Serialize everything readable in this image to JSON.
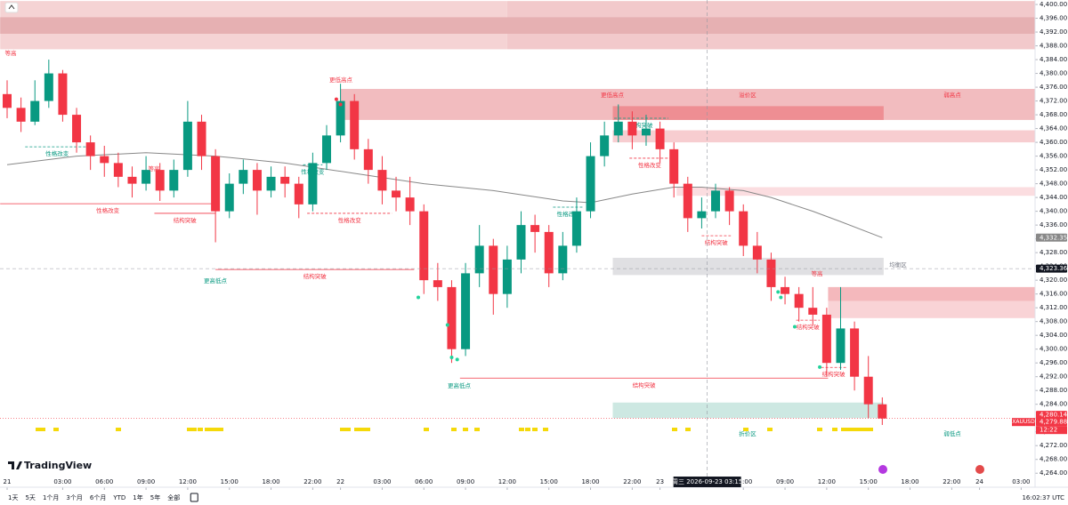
{
  "chart_data": {
    "type": "candlestick",
    "symbol": "XAUUSD",
    "up_color": "#089981",
    "down_color": "#f23645",
    "xlim": [
      -0.5,
      74
    ],
    "ylim": [
      4262,
      4401.3
    ],
    "xticks": [
      {
        "value": 0,
        "label": "21"
      },
      {
        "value": 4,
        "label": "03:00"
      },
      {
        "value": 7,
        "label": "06:00"
      },
      {
        "value": 10,
        "label": "09:00"
      },
      {
        "value": 13,
        "label": "12:00"
      },
      {
        "value": 16,
        "label": "15:00"
      },
      {
        "value": 19,
        "label": "18:00"
      },
      {
        "value": 22,
        "label": "22:00"
      },
      {
        "value": 24,
        "label": "22"
      },
      {
        "value": 27,
        "label": "03:00"
      },
      {
        "value": 30,
        "label": "06:00"
      },
      {
        "value": 33,
        "label": "09:00"
      },
      {
        "value": 36,
        "label": "12:00"
      },
      {
        "value": 39,
        "label": "15:00"
      },
      {
        "value": 42,
        "label": "18:00"
      },
      {
        "value": 45,
        "label": "22:00"
      },
      {
        "value": 47,
        "label": "23"
      },
      {
        "value": 53,
        "label": "06:00"
      },
      {
        "value": 56,
        "label": "09:00"
      },
      {
        "value": 59,
        "label": "12:00"
      },
      {
        "value": 62,
        "label": "15:00"
      },
      {
        "value": 65,
        "label": "18:00"
      },
      {
        "value": 68,
        "label": "22:00"
      },
      {
        "value": 70,
        "label": "24"
      },
      {
        "value": 73,
        "label": "03:00"
      }
    ],
    "yticks": [
      {
        "value": 4400,
        "label": "4,400.00"
      },
      {
        "value": 4396,
        "label": "4,396.00"
      },
      {
        "value": 4392,
        "label": "4,392.00"
      },
      {
        "value": 4388,
        "label": "4,388.00"
      },
      {
        "value": 4384,
        "label": "4,384.00"
      },
      {
        "value": 4380,
        "label": "4,380.00"
      },
      {
        "value": 4376,
        "label": "4,376.00"
      },
      {
        "value": 4372,
        "label": "4,372.00"
      },
      {
        "value": 4368,
        "label": "4,368.00"
      },
      {
        "value": 4364,
        "label": "4,364.00"
      },
      {
        "value": 4360,
        "label": "4,360.00"
      },
      {
        "value": 4356,
        "label": "4,356.00"
      },
      {
        "value": 4352,
        "label": "4,352.00"
      },
      {
        "value": 4348,
        "label": "4,348.00"
      },
      {
        "value": 4344,
        "label": "4,344.00"
      },
      {
        "value": 4340,
        "label": "4,340.00"
      },
      {
        "value": 4336,
        "label": "4,336.00"
      },
      {
        "value": 4332,
        "label": "4,332.00"
      },
      {
        "value": 4328,
        "label": "4,328.00"
      },
      {
        "value": 4324,
        "label": "4,324.00"
      },
      {
        "value": 4320,
        "label": "4,320.00"
      },
      {
        "value": 4316,
        "label": "4,316.00"
      },
      {
        "value": 4312,
        "label": "4,312.00"
      },
      {
        "value": 4308,
        "label": "4,308.00"
      },
      {
        "value": 4304,
        "label": "4,304.00"
      },
      {
        "value": 4300,
        "label": "4,300.00"
      },
      {
        "value": 4296,
        "label": "4,296.00"
      },
      {
        "value": 4292,
        "label": "4,292.00"
      },
      {
        "value": 4288,
        "label": "4,288.00"
      },
      {
        "value": 4284,
        "label": "4,284.00"
      },
      {
        "value": 4280,
        "label": "4,280.00"
      },
      {
        "value": 4276,
        "label": "4,276.00"
      },
      {
        "value": 4272,
        "label": "4,272.00"
      },
      {
        "value": 4268,
        "label": "4,268.00"
      },
      {
        "value": 4264,
        "label": "4,264.00"
      }
    ],
    "ohlc": [
      [
        4374,
        4378,
        4367,
        4370
      ],
      [
        4370,
        4373,
        4363,
        4366
      ],
      [
        4366,
        4378,
        4365,
        4372
      ],
      [
        4372,
        4384,
        4370,
        4380
      ],
      [
        4380,
        4381,
        4366,
        4368
      ],
      [
        4368,
        4370,
        4357,
        4360
      ],
      [
        4360,
        4362,
        4352,
        4356
      ],
      [
        4356,
        4359,
        4350,
        4354
      ],
      [
        4354,
        4357,
        4347,
        4350
      ],
      [
        4350,
        4353,
        4344,
        4348
      ],
      [
        4348,
        4356,
        4346,
        4352
      ],
      [
        4352,
        4354,
        4343,
        4346
      ],
      [
        4346,
        4355,
        4344,
        4352
      ],
      [
        4352,
        4372,
        4350,
        4366
      ],
      [
        4366,
        4368,
        4352,
        4356
      ],
      [
        4356,
        4358,
        4331,
        4340
      ],
      [
        4340,
        4351,
        4338,
        4348
      ],
      [
        4348,
        4355,
        4345,
        4352
      ],
      [
        4352,
        4354,
        4339,
        4346
      ],
      [
        4346,
        4353,
        4344,
        4350
      ],
      [
        4350,
        4353,
        4344,
        4348
      ],
      [
        4348,
        4350,
        4338,
        4342
      ],
      [
        4342,
        4357,
        4340,
        4354
      ],
      [
        4354,
        4365,
        4352,
        4362
      ],
      [
        4362,
        4377,
        4360,
        4372
      ],
      [
        4372,
        4374,
        4355,
        4358
      ],
      [
        4358,
        4361,
        4348,
        4352
      ],
      [
        4352,
        4356,
        4342,
        4346
      ],
      [
        4346,
        4350,
        4340,
        4344
      ],
      [
        4344,
        4350,
        4336,
        4340
      ],
      [
        4340,
        4342,
        4316,
        4320
      ],
      [
        4320,
        4325,
        4314,
        4318
      ],
      [
        4318,
        4320,
        4296,
        4300
      ],
      [
        4300,
        4325,
        4298,
        4322
      ],
      [
        4322,
        4336,
        4318,
        4330
      ],
      [
        4330,
        4332,
        4310,
        4316
      ],
      [
        4316,
        4330,
        4312,
        4326
      ],
      [
        4326,
        4340,
        4322,
        4336
      ],
      [
        4336,
        4339,
        4328,
        4334
      ],
      [
        4334,
        4336,
        4318,
        4322
      ],
      [
        4322,
        4334,
        4320,
        4330
      ],
      [
        4330,
        4344,
        4328,
        4340
      ],
      [
        4340,
        4360,
        4338,
        4356
      ],
      [
        4356,
        4366,
        4353,
        4362
      ],
      [
        4362,
        4371,
        4360,
        4366
      ],
      [
        4366,
        4369,
        4358,
        4362
      ],
      [
        4362,
        4368,
        4359,
        4364
      ],
      [
        4364,
        4366,
        4354,
        4358
      ],
      [
        4358,
        4360,
        4344,
        4348
      ],
      [
        4348,
        4350,
        4334,
        4338
      ],
      [
        4338,
        4344,
        4335,
        4340
      ],
      [
        4340,
        4348,
        4338,
        4346
      ],
      [
        4346,
        4347,
        4336,
        4340
      ],
      [
        4340,
        4342,
        4327,
        4330
      ],
      [
        4330,
        4334,
        4322,
        4326
      ],
      [
        4326,
        4328,
        4314,
        4318
      ],
      [
        4318,
        4321,
        4313,
        4316
      ],
      [
        4316,
        4318,
        4308,
        4312
      ],
      [
        4312,
        4318,
        4307,
        4310
      ],
      [
        4310,
        4312,
        4292,
        4296
      ],
      [
        4296,
        4318,
        4294,
        4306
      ],
      [
        4306,
        4308,
        4288,
        4292
      ],
      [
        4292,
        4298,
        4280,
        4284
      ],
      [
        4284,
        4286,
        4278,
        4279.88
      ]
    ],
    "ma": {
      "color": "#888888",
      "x": [
        0,
        5,
        10,
        15,
        20,
        25,
        30,
        35,
        40,
        42,
        45,
        48,
        50,
        53,
        55,
        58,
        60,
        63
      ],
      "values": [
        4353.5,
        4356,
        4357,
        4356,
        4354,
        4351,
        4348,
        4346,
        4343,
        4342.5,
        4345,
        4347,
        4347,
        4346,
        4344,
        4340,
        4337,
        4332.35
      ]
    },
    "zones": [
      {
        "top": 4401,
        "bottom": 4387,
        "from": -0.5,
        "to": 36,
        "color": "#f5d3d4"
      },
      {
        "top": 4401,
        "bottom": 4387,
        "from": 36,
        "to": 74,
        "color": "#f2c9cb"
      },
      {
        "top": 4396.3,
        "bottom": 4391.5,
        "from": -0.5,
        "to": 74,
        "color": "#e6b0b2"
      },
      {
        "top": 4375.5,
        "bottom": 4366.5,
        "from": 24,
        "to": 74,
        "color": "#f2bcbf"
      },
      {
        "top": 4370.5,
        "bottom": 4366.5,
        "from": 43.6,
        "to": 63.1,
        "color": "#ee8e93"
      },
      {
        "top": 4363.5,
        "bottom": 4360,
        "from": 43.6,
        "to": 74,
        "color": "#f7cdd0"
      },
      {
        "top": 4347,
        "bottom": 4344.5,
        "from": 48.2,
        "to": 74,
        "color": "#fbdde0"
      },
      {
        "top": 4326.5,
        "bottom": 4321.5,
        "from": 43.6,
        "to": 63.1,
        "color": "#e0e0e3"
      },
      {
        "top": 4318,
        "bottom": 4309,
        "from": 59.1,
        "to": 74,
        "color": "#f9d3d6"
      },
      {
        "top": 4318,
        "bottom": 4314,
        "from": 59.1,
        "to": 74,
        "color": "#f4b8bc"
      },
      {
        "top": 4284.5,
        "bottom": 4280,
        "from": 43.6,
        "to": 63.1,
        "color": "#cde8e2"
      }
    ],
    "annotations": [
      {
        "text": "性格改变",
        "price": 4358.7,
        "from": 1.3,
        "to": 5.9,
        "color": "#089981",
        "dashed": true
      },
      {
        "text": "性格改变",
        "price": 4342.2,
        "from": -0.5,
        "to": 15,
        "color": "#f23645",
        "dashed": false
      },
      {
        "text": "结构突破",
        "price": 4339.4,
        "from": 10.6,
        "to": 15,
        "color": "#f23645",
        "dashed": false
      },
      {
        "text": "结构突破",
        "price": 4323.1,
        "from": 15,
        "to": 29.3,
        "color": "#f23645",
        "dashed": false
      },
      {
        "text": "性格改变",
        "price": 4353.5,
        "from": 21.3,
        "to": 22.7,
        "color": "#089981",
        "dashed": true
      },
      {
        "text": "性格改变",
        "price": 4339.4,
        "from": 21.6,
        "to": 27.7,
        "color": "#f23645",
        "dashed": true
      },
      {
        "text": "性格改变",
        "price": 4341.2,
        "from": 39.3,
        "to": 41.5,
        "color": "#089981",
        "dashed": true
      },
      {
        "text": "结构突破",
        "price": 4367,
        "from": 43.7,
        "to": 47.6,
        "color": "#089981",
        "dashed": true
      },
      {
        "text": "性格改变",
        "price": 4355.4,
        "from": 44.8,
        "to": 47.7,
        "color": "#f23645",
        "dashed": true
      },
      {
        "text": "结构突破",
        "price": 4332.9,
        "from": 50,
        "to": 52.1,
        "color": "#f23645",
        "dashed": true
      },
      {
        "text": "结构突破",
        "price": 4308.4,
        "from": 56.8,
        "to": 58.5,
        "color": "#f23645",
        "dashed": true
      },
      {
        "text": "结构突破",
        "price": 4291.6,
        "from": 32.6,
        "to": 59.1,
        "color": "#f23645",
        "dashed": false
      },
      {
        "text": "结构突破",
        "price": 4294.7,
        "from": 58.6,
        "to": 60.4,
        "color": "#f23645",
        "dashed": true
      }
    ],
    "signals": [
      {
        "color": "#f23645",
        "x": [
          23.7,
          24
        ],
        "y": [
          4372.5,
          4371
        ]
      },
      {
        "color": "#22d39b",
        "x": [
          29.6,
          31.7,
          32,
          32.4,
          55.5,
          55.7,
          56.7,
          58.5
        ],
        "y": [
          4315,
          4307,
          4297.6,
          4297,
          4316.6,
          4315,
          4306.5,
          4294.8
        ]
      }
    ],
    "labels": [
      "等高",
      "更低高点",
      "更低高点",
      "溢价区",
      "弱高点",
      "均衡区",
      "折价区",
      "弱低点",
      "等高",
      "等高",
      "更高低点",
      "更高低点"
    ],
    "price_tags": [
      {
        "value": 4332.35,
        "label": "4,332.35",
        "color": "#888888"
      },
      {
        "value": 4323.36,
        "label": "4,323.36",
        "color": "#131722"
      },
      {
        "value": 4280.14,
        "label": "4,280.14",
        "color": "#f23645"
      },
      {
        "value": 4279.88,
        "label": "4,279.88",
        "color": "#f23645"
      }
    ],
    "countdown": "12:22",
    "crosshair": {
      "x": 50.4,
      "price": 4323.36,
      "label": "周三 2026-09-23  03:15"
    }
  },
  "branding": "TradingView",
  "toolbar": {
    "ranges": [
      "1天",
      "5天",
      "1个月",
      "3个月",
      "6个月",
      "YTD",
      "1年",
      "5年",
      "全部"
    ],
    "clock": "16:02:37 UTC"
  }
}
